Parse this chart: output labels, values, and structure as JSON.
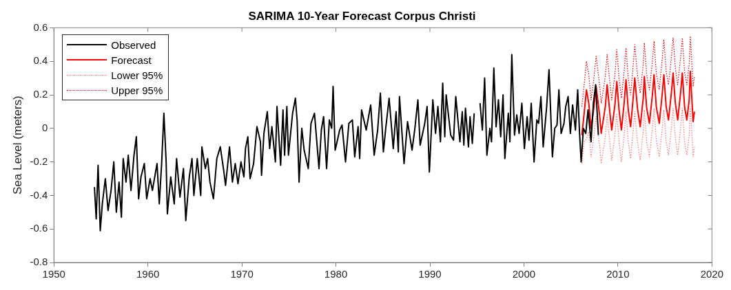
{
  "chart_data": {
    "type": "line",
    "title": "SARIMA 10-Year Forecast Corpus Christi",
    "ylabel": "Sea Level (meters)",
    "xlim": [
      1950,
      2020
    ],
    "xticks": [
      1950,
      1960,
      1970,
      1980,
      1990,
      2000,
      2010,
      2020
    ],
    "ylim": [
      -0.8,
      0.6
    ],
    "yticks": [
      -0.8,
      -0.6,
      -0.4,
      -0.2,
      0,
      0.2,
      0.4,
      0.6
    ],
    "grid": false,
    "legend": "top left",
    "marker": "none",
    "series": [
      {
        "name": "Observed",
        "color": "#000000",
        "line_style": "solid",
        "x": [
          1954.31,
          1954.5,
          1954.7,
          1954.93,
          1955.15,
          1955.47,
          1955.76,
          1956.08,
          1956.37,
          1956.64,
          1956.93,
          1957.18,
          1957.37,
          1957.67,
          1957.91,
          1958.2,
          1958.52,
          1958.77,
          1959.01,
          1959.26,
          1959.62,
          1959.87,
          1960.23,
          1960.48,
          1960.97,
          1961.21,
          1961.46,
          1961.7,
          1961.94,
          1962.07,
          1962.43,
          1962.8,
          1963.05,
          1963.41,
          1963.78,
          1964.03,
          1964.4,
          1964.69,
          1964.89,
          1965.25,
          1965.62,
          1965.74,
          1966.11,
          1966.35,
          1966.6,
          1966.97,
          1967.33,
          1967.7,
          1968.06,
          1968.26,
          1968.68,
          1968.99,
          1969.29,
          1969.58,
          1969.9,
          1970.21,
          1970.38,
          1970.63,
          1970.87,
          1971.24,
          1971.6,
          1971.97,
          1972.09,
          1972.34,
          1972.7,
          1972.95,
          1973.19,
          1973.56,
          1973.73,
          1974.12,
          1974.37,
          1974.54,
          1974.78,
          1974.95,
          1975.39,
          1975.69,
          1975.88,
          1976.08,
          1976.37,
          1976.62,
          1977.06,
          1977.35,
          1977.72,
          1978.2,
          1978.45,
          1978.69,
          1979.01,
          1979.3,
          1979.55,
          1979.7,
          1979.92,
          1980.4,
          1980.65,
          1981.02,
          1981.38,
          1981.75,
          1982.0,
          1982.36,
          1982.53,
          1982.73,
          1983.22,
          1983.7,
          1984.07,
          1984.44,
          1984.73,
          1985.05,
          1985.3,
          1985.66,
          1986.1,
          1986.4,
          1986.64,
          1986.76,
          1987.25,
          1987.62,
          1988.1,
          1988.4,
          1988.72,
          1988.96,
          1989.45,
          1989.7,
          1989.94,
          1990.31,
          1990.6,
          1990.85,
          1991.12,
          1991.36,
          1991.58,
          1991.73,
          1992.21,
          1992.51,
          1992.75,
          1993.19,
          1993.44,
          1993.61,
          1993.78,
          1994.1,
          1994.27,
          1994.51,
          1994.71,
          1995.0,
          1995.33,
          1995.58,
          1995.82,
          1996.06,
          1996.38,
          1996.55,
          1996.8,
          1997.04,
          1997.29,
          1997.53,
          1997.78,
          1997.97,
          1998.34,
          1998.51,
          1998.71,
          1999.0,
          1999.24,
          1999.49,
          1999.78,
          2000.05,
          2000.34,
          2000.54,
          2000.78,
          2001.08,
          2001.37,
          2001.56,
          2001.81,
          2002.05,
          2002.42,
          2002.67,
          2003.03,
          2003.28,
          2003.52,
          2003.72,
          2003.96,
          2004.26,
          2004.45,
          2004.7,
          2004.94,
          2005.18,
          2005.48,
          2005.72,
          2005.92,
          2006.09,
          2006.33,
          2006.58,
          2006.82,
          2007.14,
          2007.39,
          2007.63,
          2007.92
        ],
        "values": [
          -0.35,
          -0.54,
          -0.22,
          -0.61,
          -0.45,
          -0.3,
          -0.49,
          -0.37,
          -0.2,
          -0.5,
          -0.32,
          -0.53,
          -0.18,
          -0.32,
          -0.16,
          -0.37,
          -0.16,
          -0.05,
          -0.42,
          -0.29,
          -0.21,
          -0.42,
          -0.3,
          -0.37,
          -0.21,
          -0.45,
          -0.21,
          0.09,
          -0.2,
          -0.51,
          -0.29,
          -0.45,
          -0.18,
          -0.41,
          -0.24,
          -0.55,
          -0.29,
          -0.18,
          -0.4,
          -0.18,
          -0.4,
          -0.11,
          -0.24,
          -0.18,
          -0.32,
          -0.42,
          -0.18,
          -0.11,
          -0.25,
          -0.34,
          -0.11,
          -0.32,
          -0.21,
          -0.33,
          -0.2,
          -0.29,
          -0.12,
          -0.05,
          -0.3,
          -0.21,
          0.01,
          -0.08,
          -0.28,
          -0.03,
          0.1,
          -0.12,
          0.01,
          -0.2,
          0.13,
          -0.22,
          0.11,
          -0.16,
          0.13,
          -0.16,
          0.09,
          0.18,
          0.04,
          -0.32,
          0,
          -0.13,
          -0.24,
          0.03,
          0.09,
          -0.24,
          -0.01,
          0.07,
          -0.24,
          0.05,
          0,
          0.25,
          -0.13,
          -0.01,
          0.02,
          -0.2,
          0.03,
          0.05,
          -0.17,
          0.01,
          -0.18,
          0.11,
          -0.01,
          0.14,
          -0.16,
          -0.01,
          0.21,
          -0.14,
          0,
          0.18,
          -0.12,
          0.1,
          -0.14,
          0.19,
          -0.21,
          0.04,
          -0.13,
          0,
          0.17,
          -0.1,
          0.03,
          0.13,
          -0.26,
          0.17,
          -0.03,
          0.13,
          -0.08,
          0.27,
          -0.05,
          0.2,
          -0.04,
          -0.07,
          0.19,
          -0.08,
          0.1,
          -0.1,
          0.12,
          -0.11,
          0.07,
          -0.09,
          0.09,
          null,
          0.15,
          -0.01,
          0.3,
          -0.16,
          0,
          -0.08,
          0.36,
          0.01,
          0.17,
          -0.05,
          0.2,
          -0.18,
          0.09,
          -0.08,
          0.44,
          -0.04,
          0.08,
          -0.03,
          0.15,
          -0.12,
          0.07,
          -0.07,
          0.15,
          -0.2,
          0.05,
          0.03,
          0.19,
          -0.11,
          0.13,
          0.35,
          -0.17,
          0,
          0.02,
          0.23,
          -0.03,
          0.03,
          0.13,
          0.19,
          -0.03,
          0.14,
          -0.01,
          0.23,
          -0.03,
          -0.2,
          0,
          -0.03,
          0.11,
          -0.08,
          0.15,
          0.26,
          -0.04
        ]
      },
      {
        "name": "Forecast",
        "color": "#ff0000",
        "line_style": "solid",
        "x": [
          2006.16,
          2006.41,
          2006.65,
          2006.9,
          2007.14,
          2007.43,
          2007.68,
          2008.05,
          2008.22,
          2008.66,
          2008.85,
          2009.15,
          2009.34,
          2009.68,
          2009.88,
          2010.12,
          2010.37,
          2010.66,
          2010.86,
          2011.1,
          2011.35,
          2011.59,
          2011.79,
          2012.08,
          2012.37,
          2012.69,
          2012.81,
          2013.06,
          2013.35,
          2013.67,
          2013.84,
          2014.08,
          2014.4,
          2014.72,
          2014.89,
          2015.13,
          2015.38,
          2015.7,
          2015.87,
          2016.11,
          2016.36,
          2016.68,
          2016.85,
          2017.09,
          2017.33,
          2017.58,
          2017.7,
          2018.0,
          2018.14
        ],
        "values": [
          -0.04,
          0.09,
          0.23,
          0.15,
          0,
          0.12,
          0.25,
          0.08,
          -0.03,
          0.13,
          0.26,
          0.09,
          -0.01,
          0.14,
          0.28,
          0.11,
          -0.01,
          0.15,
          0.29,
          0.11,
          0.01,
          0.16,
          0.3,
          0.12,
          0.01,
          0.18,
          0.31,
          0.12,
          0.03,
          0.2,
          0.32,
          0.13,
          0.03,
          0.21,
          0.32,
          0.13,
          0.05,
          0.22,
          0.33,
          0.15,
          0.05,
          0.22,
          0.33,
          0.13,
          0.05,
          0.17,
          0.34,
          0.04,
          0.1
        ]
      },
      {
        "name": "Lower 95%",
        "color": "#ff7070",
        "line_style": "dotted",
        "x": [
          2006.16,
          2006.41,
          2006.65,
          2006.9,
          2007.14,
          2007.43,
          2007.68,
          2008.05,
          2008.22,
          2008.66,
          2008.85,
          2009.15,
          2009.34,
          2009.68,
          2009.88,
          2010.12,
          2010.37,
          2010.66,
          2010.86,
          2011.1,
          2011.35,
          2011.59,
          2011.79,
          2012.08,
          2012.37,
          2012.69,
          2012.81,
          2013.06,
          2013.35,
          2013.67,
          2013.84,
          2014.08,
          2014.4,
          2014.72,
          2014.89,
          2015.13,
          2015.38,
          2015.7,
          2015.87,
          2016.11,
          2016.36,
          2016.68,
          2016.85,
          2017.09,
          2017.33,
          2017.58,
          2017.7,
          2018.0,
          2018.14
        ],
        "values": [
          -0.21,
          -0.08,
          -0.06,
          -0.02,
          -0.17,
          -0.05,
          0.07,
          -0.1,
          -0.21,
          -0.05,
          0.08,
          -0.09,
          -0.19,
          -0.04,
          0.09,
          -0.08,
          -0.2,
          -0.04,
          0.1,
          -0.08,
          -0.18,
          -0.03,
          0.1,
          -0.08,
          -0.19,
          -0.02,
          0.11,
          -0.08,
          -0.17,
          0,
          0.12,
          -0.07,
          -0.17,
          0,
          0.11,
          -0.08,
          -0.16,
          0.01,
          0.12,
          -0.06,
          -0.16,
          0.01,
          0.12,
          -0.08,
          -0.16,
          -0.04,
          0.13,
          -0.17,
          -0.11
        ]
      },
      {
        "name": "Upper 95%",
        "color": "#e00000",
        "line_style": "dotted",
        "x": [
          2006.16,
          2006.41,
          2006.65,
          2006.9,
          2007.14,
          2007.43,
          2007.68,
          2008.05,
          2008.22,
          2008.66,
          2008.85,
          2009.15,
          2009.34,
          2009.68,
          2009.88,
          2010.12,
          2010.37,
          2010.66,
          2010.86,
          2011.1,
          2011.35,
          2011.59,
          2011.79,
          2012.08,
          2012.37,
          2012.69,
          2012.81,
          2013.06,
          2013.35,
          2013.67,
          2013.84,
          2014.08,
          2014.4,
          2014.72,
          2014.89,
          2015.13,
          2015.38,
          2015.7,
          2015.87,
          2016.11,
          2016.36,
          2016.68,
          2016.85,
          2017.09,
          2017.33,
          2017.58,
          2017.7,
          2018.0,
          2018.14
        ],
        "values": [
          0.13,
          0.26,
          0.4,
          0.32,
          0.17,
          0.29,
          0.43,
          0.26,
          0.15,
          0.31,
          0.44,
          0.27,
          0.17,
          0.32,
          0.47,
          0.3,
          0.18,
          0.34,
          0.48,
          0.3,
          0.2,
          0.35,
          0.5,
          0.32,
          0.21,
          0.38,
          0.51,
          0.32,
          0.23,
          0.4,
          0.52,
          0.33,
          0.23,
          0.42,
          0.53,
          0.34,
          0.26,
          0.43,
          0.54,
          0.36,
          0.26,
          0.43,
          0.54,
          0.34,
          0.26,
          0.38,
          0.55,
          0.25,
          0.31
        ]
      }
    ]
  }
}
